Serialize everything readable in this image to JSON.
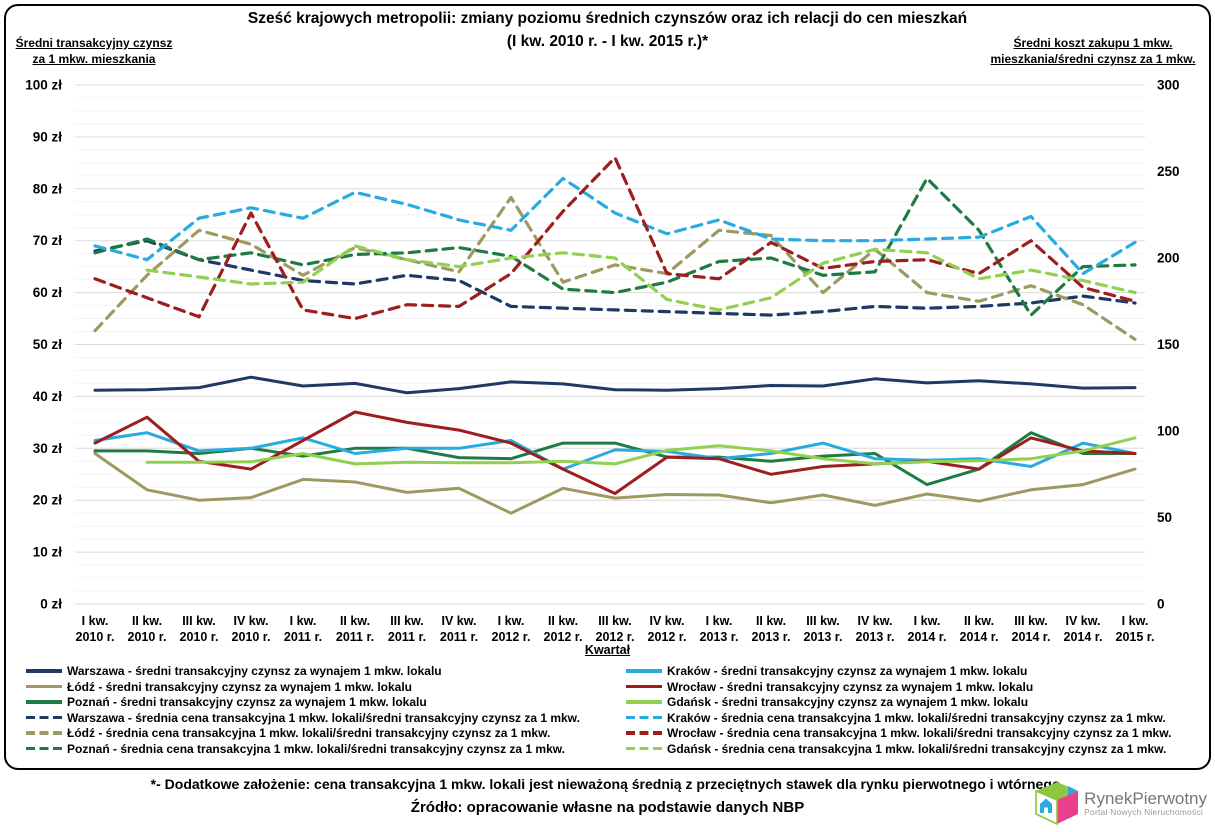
{
  "title": {
    "line1": "Sześć krajowych metropolii: zmiany poziomu średnich czynszów oraz ich relacji do cen mieszkań",
    "line2": "(I kw. 2010 r. -  I kw. 2015 r.)*"
  },
  "left_axis_header": [
    "Średni transakcyjny czynsz",
    "za 1 mkw. mieszkania"
  ],
  "right_axis_header": [
    "Średni koszt zakupu 1 mkw.",
    "mieszkania/średni czynsz za 1 mkw."
  ],
  "footnote": "*- Dodatkowe założenie: cena transakcyjna 1 mkw. lokali jest nieważoną średnią z przeciętnych stawek dla rynku pierwotnego i wtórnego.",
  "source": "Źródło: opracowanie własne na podstawie danych NBP",
  "logo": {
    "name": "RynekPierwotny",
    "subtitle": "Portal Nowych Nieruchomości"
  },
  "chart_data": {
    "type": "line",
    "x_axis_label": "Kwartał",
    "grid": {
      "major_step": 10,
      "minor_step": 2.5,
      "horizontal_only": true
    },
    "left_axis": {
      "min": 0,
      "max": 100,
      "ticks": [
        "100 zł",
        "90 zł",
        "80 zł",
        "70 zł",
        "60 zł",
        "50 zł",
        "40 zł",
        "30 zł",
        "20 zł",
        "10 zł",
        "0 zł"
      ]
    },
    "right_axis": {
      "min": 0,
      "max": 300,
      "ticks": [
        "300",
        "250",
        "200",
        "150",
        "100",
        "50",
        "0"
      ]
    },
    "categories": [
      [
        "I kw.",
        "2010 r."
      ],
      [
        "II kw.",
        "2010 r."
      ],
      [
        "III kw.",
        "2010 r."
      ],
      [
        "IV kw.",
        "2010 r."
      ],
      [
        "I kw.",
        "2011 r."
      ],
      [
        "II kw.",
        "2011 r."
      ],
      [
        "III kw.",
        "2011 r."
      ],
      [
        "IV kw.",
        "2011 r."
      ],
      [
        "I kw.",
        "2012 r."
      ],
      [
        "II kw.",
        "2012 r."
      ],
      [
        "III kw.",
        "2012 r."
      ],
      [
        "IV kw.",
        "2012 r."
      ],
      [
        "I kw.",
        "2013 r."
      ],
      [
        "II kw.",
        "2013 r."
      ],
      [
        "III kw.",
        "2013 r."
      ],
      [
        "IV kw.",
        "2013 r."
      ],
      [
        "I kw.",
        "2014 r."
      ],
      [
        "II kw.",
        "2014 r."
      ],
      [
        "III kw.",
        "2014 r."
      ],
      [
        "IV kw.",
        "2014 r."
      ],
      [
        "I kw.",
        "2015 r."
      ]
    ],
    "series": [
      {
        "id": "warszawa-czynsz",
        "name": "Warszawa - średni transakcyjny czynsz za wynajem 1 mkw. lokalu",
        "color": "#1F3864",
        "dash": false,
        "axis": "left",
        "values": [
          41.2,
          41.3,
          41.7,
          43.7,
          42,
          42.5,
          40.7,
          41.5,
          42.8,
          42.4,
          41.3,
          41.2,
          41.5,
          42.1,
          42,
          43.4,
          42.6,
          43,
          42.4,
          41.6,
          41.7
        ]
      },
      {
        "id": "lodz-czynsz",
        "name": "Łódź - średni transakcyjny czynsz za wynajem 1 mkw. lokalu",
        "color": "#9E9960",
        "dash": false,
        "axis": "left",
        "values": [
          29,
          22,
          20,
          20.5,
          24,
          23.5,
          21.5,
          22.3,
          17.5,
          22.3,
          20.4,
          21.1,
          21,
          19.5,
          21,
          19,
          21.2,
          19.8,
          22,
          23,
          26
        ]
      },
      {
        "id": "poznan-czynsz",
        "name": "Poznań - średni transakcyjny czynsz za wynajem 1 mkw. lokalu",
        "color": "#1E7B44",
        "dash": false,
        "axis": "left",
        "values": [
          29.5,
          29.5,
          29,
          30,
          28.5,
          30,
          30,
          28.2,
          28,
          31,
          31,
          28.3,
          28.3,
          27.5,
          28.5,
          29,
          23,
          26,
          33,
          29,
          29
        ]
      },
      {
        "id": "warszawa-relacja",
        "name": "Warszawa - średnia cena transakcyjna 1 mkw. lokali/średni transakcyjny czynsz za 1 mkw.",
        "color": "#1F3864",
        "dash": true,
        "axis": "right",
        "values": [
          204,
          210,
          199,
          193,
          187,
          185,
          190,
          187,
          172,
          171,
          170,
          169,
          168,
          167,
          169,
          172,
          171,
          172,
          174,
          178,
          174
        ]
      },
      {
        "id": "lodz-relacja",
        "name": "Łódź - średnia cena transakcyjna 1 mkw. lokali/średni transakcyjny czynsz za 1 mkw.",
        "color": "#9E9960",
        "dash": true,
        "axis": "right",
        "values": [
          158,
          190,
          216,
          208,
          190,
          206,
          199,
          192,
          235,
          186,
          196,
          191,
          216,
          213,
          180,
          205,
          180,
          175,
          184,
          173,
          153
        ]
      },
      {
        "id": "poznan-relacja",
        "name": "Poznań - średnia cena transakcyjna 1 mkw. lokali/średni transakcyjny czynsz za 1 mkw.",
        "color": "#1E7B44",
        "dash": true,
        "axis": "right",
        "values": [
          203,
          211,
          199,
          203,
          196,
          202,
          203,
          206,
          201,
          182,
          180,
          186,
          198,
          200,
          190,
          192,
          246,
          216,
          167,
          195,
          196
        ]
      },
      {
        "id": "krakow-czynsz",
        "name": "Kraków - średni transakcyjny czynsz za wynajem 1 mkw. lokalu",
        "color": "#29ABE2",
        "dash": false,
        "axis": "left",
        "values": [
          31.5,
          33,
          29.5,
          30,
          32,
          29,
          30,
          30,
          31.5,
          26,
          29.7,
          29.4,
          28,
          29,
          31,
          28,
          27.7,
          28,
          26.5,
          31,
          29
        ]
      },
      {
        "id": "wroclaw-czynsz",
        "name": "Wrocław - średni transakcyjny czynsz za wynajem 1 mkw. lokalu",
        "color": "#9E1E1E",
        "dash": false,
        "axis": "left",
        "values": [
          31,
          36,
          27.5,
          26,
          31.5,
          37,
          35,
          33.5,
          31,
          26,
          21.3,
          28.3,
          28,
          25,
          26.5,
          27,
          27.5,
          26,
          32,
          29.5,
          29
        ]
      },
      {
        "id": "gdansk-czynsz",
        "name": "Gdańsk - średni transakcyjny czynsz za wynajem 1 mkw. lokalu",
        "color": "#92D050",
        "dash": false,
        "axis": "left",
        "values": [
          null,
          27.3,
          27.3,
          27.4,
          29,
          27,
          27.3,
          27.2,
          27.2,
          27.5,
          27,
          29.6,
          30.5,
          29.5,
          28,
          27,
          27.4,
          27.6,
          28,
          29.5,
          32
        ]
      },
      {
        "id": "krakow-relacja",
        "name": "Kraków - średnia cena transakcyjna 1 mkw. lokali/średni transakcyjny czynsz za 1 mkw.",
        "color": "#29ABE2",
        "dash": true,
        "axis": "right",
        "values": [
          207,
          199,
          223,
          229,
          223,
          238,
          231,
          222,
          216,
          246,
          226,
          214,
          222,
          211,
          210,
          210,
          211,
          212,
          224,
          191,
          209
        ]
      },
      {
        "id": "wroclaw-relacja",
        "name": "Wrocław - średnia cena transakcyjna 1 mkw. lokali/średni transakcyjny czynsz za 1 mkw.",
        "color": "#9E1E1E",
        "dash": true,
        "axis": "right",
        "values": [
          188,
          177,
          166,
          226,
          170,
          165,
          173,
          172,
          191,
          227,
          258,
          191,
          188,
          209,
          194,
          198,
          199,
          191,
          210,
          183,
          175
        ]
      },
      {
        "id": "gdansk-relacja",
        "name": "Gdańsk - średnia cena transakcyjna 1 mkw. lokali/średni transakcyjny czynsz za 1 mkw.",
        "color": "#92D050",
        "dash": true,
        "axis": "right",
        "values": [
          null,
          193,
          189,
          185,
          186,
          207,
          199,
          195,
          200,
          203,
          200,
          176,
          170,
          177,
          197,
          205,
          203,
          188,
          193,
          187,
          180
        ]
      }
    ]
  }
}
